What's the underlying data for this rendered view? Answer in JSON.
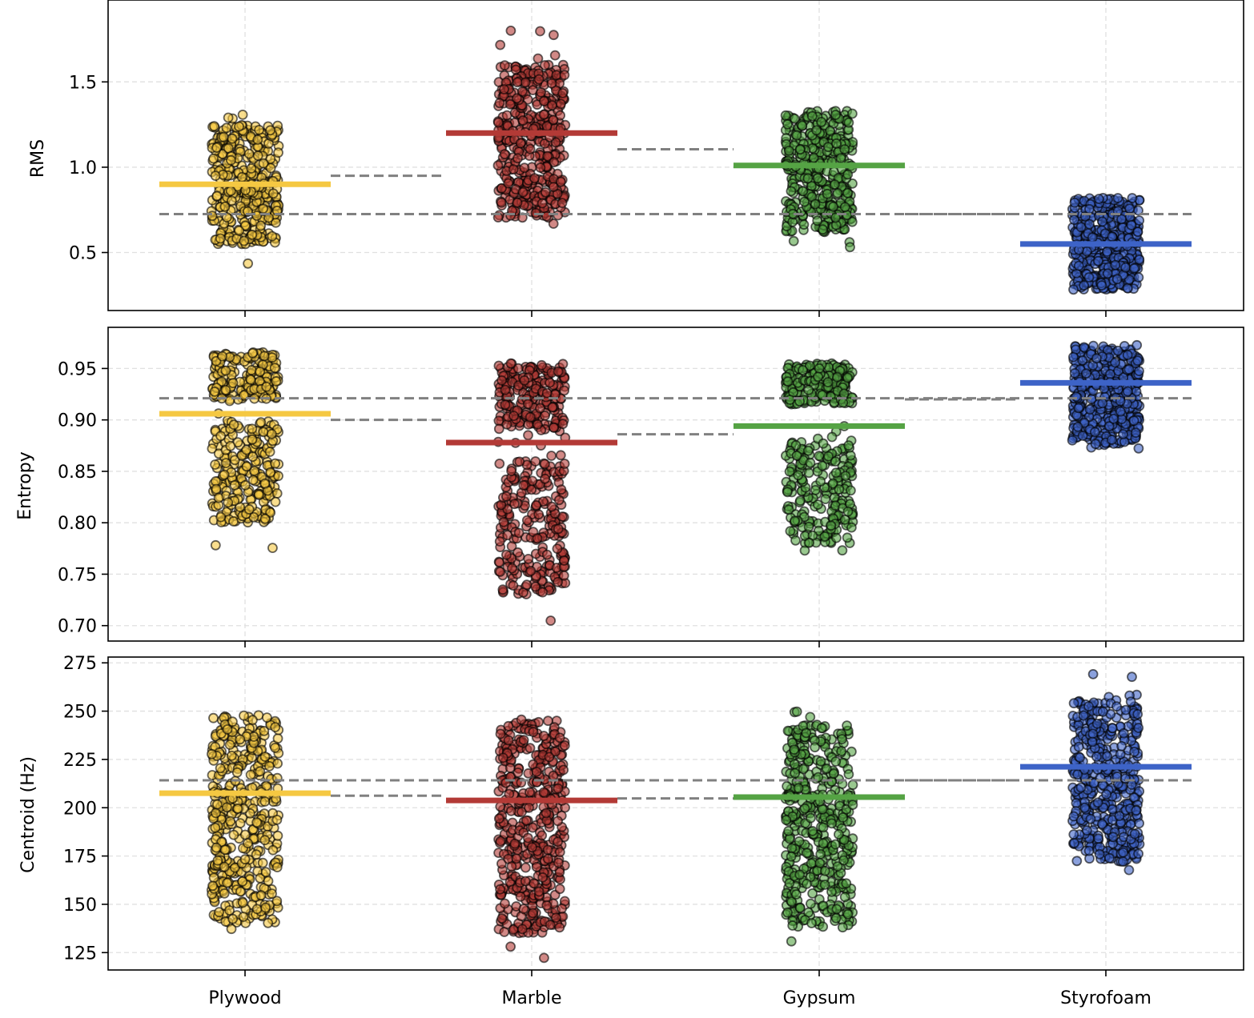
{
  "chart_data": {
    "type": "scatter",
    "subtype": "jittered strip plot with group means",
    "categories": [
      "Plywood",
      "Marble",
      "Gypsum",
      "Styrofoam"
    ],
    "colors": {
      "Plywood": "#f5c842",
      "Marble": "#b33a36",
      "Gypsum": "#55a344",
      "Styrofoam": "#3d63c7",
      "point_edge": "#000000",
      "reference_line": "#808080",
      "grid": "#e0e0e0"
    },
    "grid": true,
    "panels": [
      {
        "ylabel": "RMS",
        "ylim": [
          0.16,
          1.98
        ],
        "yticks": [
          "0.5",
          "1.0",
          "1.5"
        ],
        "ytick_values": [
          0.5,
          1.0,
          1.5
        ],
        "means": [
          0.9,
          1.2,
          1.01,
          0.55
        ],
        "overall_mean": 0.725,
        "pairwise_means": [
          0.95,
          1.105,
          0.725
        ],
        "distribution": [
          {
            "lo": 0.42,
            "hi": 1.36,
            "core_lo": 0.55,
            "core_hi": 1.25,
            "n": 380,
            "shape": "uniform"
          },
          {
            "lo": 0.56,
            "hi": 1.88,
            "core_lo": 0.7,
            "core_hi": 1.6,
            "n": 420,
            "shape": "uniform"
          },
          {
            "lo": 0.53,
            "hi": 1.38,
            "core_lo": 0.62,
            "core_hi": 1.33,
            "n": 420,
            "shape": "uniform"
          },
          {
            "lo": 0.25,
            "hi": 0.85,
            "core_lo": 0.28,
            "core_hi": 0.82,
            "n": 450,
            "shape": "uniform"
          }
        ]
      },
      {
        "ylabel": "Entropy",
        "ylim": [
          0.685,
          0.99
        ],
        "yticks": [
          "0.70",
          "0.75",
          "0.80",
          "0.85",
          "0.90",
          "0.95"
        ],
        "ytick_values": [
          0.7,
          0.75,
          0.8,
          0.85,
          0.9,
          0.95
        ],
        "means": [
          0.906,
          0.878,
          0.894,
          0.936
        ],
        "overall_mean": 0.921,
        "pairwise_means": [
          0.9,
          0.886,
          0.92
        ],
        "distribution": [
          {
            "lo": 0.772,
            "hi": 0.968,
            "core_lo": 0.79,
            "core_hi": 0.965,
            "n": 420,
            "shape": "bimodal",
            "modes": [
              [
                0.92,
                0.965
              ],
              [
                0.8,
                0.9
              ]
            ]
          },
          {
            "lo": 0.7,
            "hi": 0.957,
            "core_lo": 0.72,
            "core_hi": 0.955,
            "n": 450,
            "shape": "bimodal",
            "modes": [
              [
                0.89,
                0.955
              ],
              [
                0.73,
                0.86
              ]
            ]
          },
          {
            "lo": 0.757,
            "hi": 0.957,
            "core_lo": 0.78,
            "core_hi": 0.955,
            "n": 420,
            "shape": "bimodal",
            "modes": [
              [
                0.915,
                0.955
              ],
              [
                0.78,
                0.88
              ]
            ]
          },
          {
            "lo": 0.862,
            "hi": 0.977,
            "core_lo": 0.875,
            "core_hi": 0.972,
            "n": 450,
            "shape": "uniform"
          }
        ]
      },
      {
        "ylabel": "Centroid (Hz)",
        "ylim": [
          116,
          278
        ],
        "yticks": [
          "125",
          "150",
          "175",
          "200",
          "225",
          "250",
          "275"
        ],
        "ytick_values": [
          125,
          150,
          175,
          200,
          225,
          250,
          275
        ],
        "means": [
          207.5,
          203.8,
          205.5,
          221.2
        ],
        "overall_mean": 214.2,
        "pairwise_means": [
          206.2,
          204.8,
          214.2
        ],
        "distribution": [
          {
            "lo": 133,
            "hi": 249,
            "core_lo": 140,
            "core_hi": 248,
            "n": 450,
            "shape": "uniform"
          },
          {
            "lo": 122,
            "hi": 250,
            "core_lo": 135,
            "core_hi": 245,
            "n": 450,
            "shape": "uniform"
          },
          {
            "lo": 129,
            "hi": 262,
            "core_lo": 138,
            "core_hi": 243,
            "n": 450,
            "shape": "uniform"
          },
          {
            "lo": 165,
            "hi": 270,
            "core_lo": 172,
            "core_hi": 256,
            "n": 450,
            "shape": "uniform"
          }
        ]
      }
    ]
  }
}
